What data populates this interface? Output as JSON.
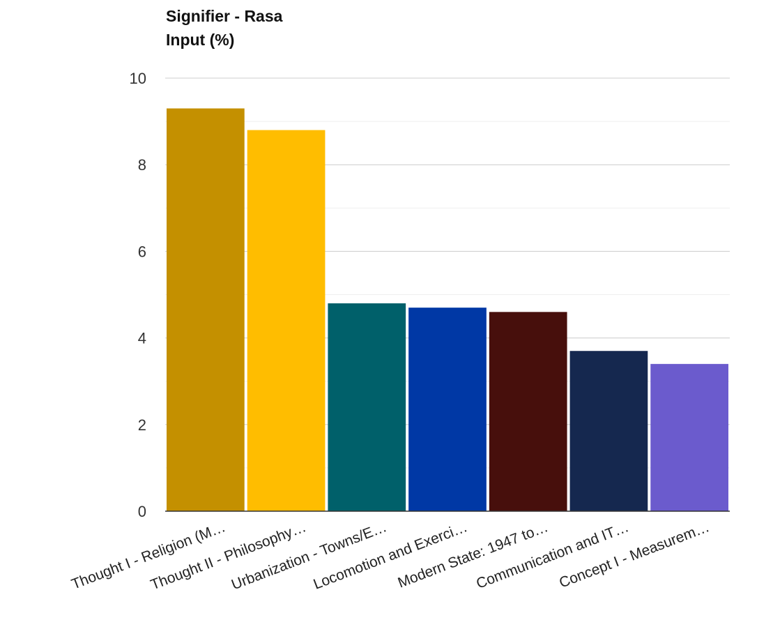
{
  "chart_data": {
    "type": "bar",
    "title": "Signifier - Rasa",
    "subtitle": "Input (%)",
    "xlabel": "",
    "ylabel": "",
    "ylim": [
      0,
      10
    ],
    "yticks": [
      0,
      2,
      4,
      6,
      8,
      10
    ],
    "grid": true,
    "legend": "none",
    "categories": [
      "Thought I - Religion (M…",
      "Thought II - Philosophy…",
      "Urbanization - Towns/E…",
      "Locomotion and Exerci…",
      "Modern State: 1947 to…",
      "Communication and IT…",
      "Concept I - Measurem…"
    ],
    "values": [
      9.3,
      8.8,
      4.8,
      4.7,
      4.6,
      3.7,
      3.4
    ],
    "colors": [
      "#c49000",
      "#ffbd00",
      "#00606a",
      "#0038a5",
      "#470f0c",
      "#15284f",
      "#6b5bcd"
    ]
  }
}
